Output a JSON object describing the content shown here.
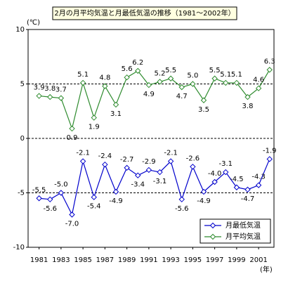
{
  "chart_data": {
    "type": "line",
    "title": "2月の月平均気温と月最低気温の推移（1981～2002年）",
    "y_label": "(℃)",
    "x_label": "(年)",
    "x": [
      1981,
      1982,
      1983,
      1984,
      1985,
      1986,
      1987,
      1988,
      1989,
      1990,
      1991,
      1992,
      1993,
      1994,
      1995,
      1996,
      1997,
      1998,
      1999,
      2000,
      2001,
      2002
    ],
    "series": [
      {
        "name": "月最低気温",
        "color": "#0000cc",
        "values": [
          -5.5,
          -5.6,
          -5.0,
          -7.0,
          -2.1,
          -5.4,
          -2.4,
          -4.9,
          -2.7,
          -3.4,
          -2.9,
          -3.1,
          -2.1,
          -5.6,
          -2.6,
          -4.9,
          -4.0,
          -3.1,
          -4.5,
          -4.7,
          -4.3,
          -1.9
        ],
        "value_labels": [
          "-5.5",
          "-5.6",
          "-5.0",
          "-7.0",
          "-2.1",
          "-5.4",
          "-2.4",
          "-4.9",
          "-2.7",
          "-3.4",
          "-2.9",
          "-3.1",
          "-2.1",
          "-5.6",
          "-2.6",
          "-4.9",
          "-4.0",
          "-3.1",
          "-4.5",
          "-4.7",
          "-4.3",
          "-1.9"
        ]
      },
      {
        "name": "月平均気温",
        "color": "#2e8b2e",
        "values": [
          3.9,
          3.8,
          3.7,
          0.9,
          5.1,
          1.9,
          4.8,
          3.1,
          5.6,
          6.2,
          4.9,
          5.2,
          5.5,
          4.7,
          5.0,
          3.5,
          5.5,
          5.1,
          5.1,
          3.8,
          4.6,
          6.3
        ],
        "value_labels": [
          "3.9",
          "3.8",
          "3.7",
          "0.9",
          "5.1",
          "1.9",
          "4.8",
          "3.1",
          "5.6",
          "6.2",
          "4.9",
          "5.2",
          "5.5",
          "4.7",
          "5.0",
          "3.5",
          "5.5",
          "5.1",
          "5.1",
          "3.8",
          "4.6",
          "6.3"
        ]
      }
    ],
    "xlim": [
      1980,
      2002.4
    ],
    "xticks": [
      1981,
      1983,
      1985,
      1987,
      1989,
      1991,
      1993,
      1995,
      1997,
      1999,
      2001
    ],
    "ylim": [
      -10,
      10
    ],
    "yticks": [
      10,
      5,
      0,
      -5,
      -10
    ],
    "grid": true,
    "legend": "lower right"
  }
}
